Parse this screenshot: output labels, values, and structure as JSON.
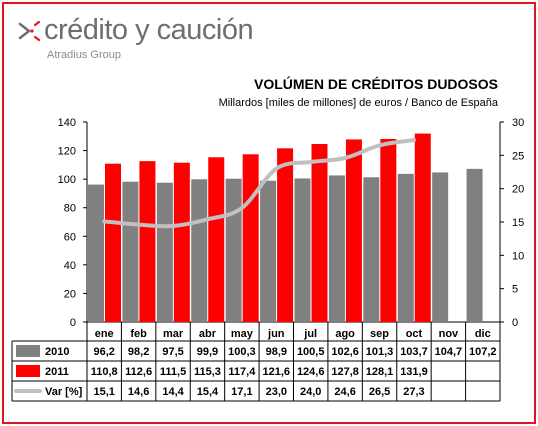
{
  "brand": {
    "name": "crédito y caución",
    "group": "Atradius Group",
    "accent_color": "#e3141b",
    "text_color": "#6d6e70"
  },
  "chart_data": {
    "type": "bar",
    "title": "VOLÚMEN DE CRÉDITOS DUDOSOS",
    "subtitle": "Millardos [miles de millones] de euros / Banco de España",
    "categories": [
      "ene",
      "feb",
      "mar",
      "abr",
      "may",
      "jun",
      "jul",
      "ago",
      "sep",
      "oct",
      "nov",
      "dic"
    ],
    "series": [
      {
        "name": "2010",
        "type": "bar",
        "axis": "left",
        "color": "#808080",
        "values": [
          96.2,
          98.2,
          97.5,
          99.9,
          100.3,
          98.9,
          100.5,
          102.6,
          101.3,
          103.7,
          104.7,
          107.2
        ],
        "labels": [
          "96,2",
          "98,2",
          "97,5",
          "99,9",
          "100,3",
          "98,9",
          "100,5",
          "102,6",
          "101,3",
          "103,7",
          "104,7",
          "107,2"
        ]
      },
      {
        "name": "2011",
        "type": "bar",
        "axis": "left",
        "color": "#ff0000",
        "values": [
          110.8,
          112.6,
          111.5,
          115.3,
          117.4,
          121.6,
          124.6,
          127.8,
          128.1,
          131.9,
          null,
          null
        ],
        "labels": [
          "110,8",
          "112,6",
          "111,5",
          "115,3",
          "117,4",
          "121,6",
          "124,6",
          "127,8",
          "128,1",
          "131,9",
          "",
          ""
        ]
      },
      {
        "name": "Var [%]",
        "type": "line",
        "axis": "right",
        "color": "#c0c0c0",
        "values": [
          15.1,
          14.6,
          14.4,
          15.4,
          17.1,
          23.0,
          24.0,
          24.6,
          26.5,
          27.3,
          null,
          null
        ],
        "labels": [
          "15,1",
          "14,6",
          "14,4",
          "15,4",
          "17,1",
          "23,0",
          "24,0",
          "24,6",
          "26,5",
          "27,3",
          "",
          ""
        ]
      }
    ],
    "y_left": {
      "min": 0,
      "max": 140,
      "step": 20,
      "ticks": [
        "0",
        "20",
        "40",
        "60",
        "80",
        "100",
        "120",
        "140"
      ]
    },
    "y_right": {
      "min": 0,
      "max": 30,
      "step": 5,
      "ticks": [
        "0",
        "5",
        "10",
        "15",
        "20",
        "25",
        "30"
      ]
    },
    "legend": "data table below chart",
    "grid": false
  }
}
